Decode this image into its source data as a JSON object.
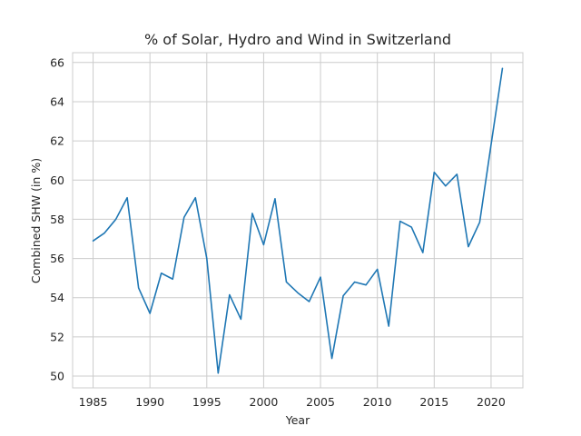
{
  "chart_data": {
    "type": "line",
    "title": "% of Solar, Hydro and Wind in Switzerland",
    "xlabel": "Year",
    "ylabel": "Combined SHW (in %)",
    "xlim": [
      1983.2,
      2022.8
    ],
    "ylim": [
      49.4,
      66.5
    ],
    "xticks": [
      1985,
      1990,
      1995,
      2000,
      2005,
      2010,
      2015,
      2020
    ],
    "yticks": [
      50,
      52,
      54,
      56,
      58,
      60,
      62,
      64,
      66
    ],
    "grid": true,
    "series": [
      {
        "color": "#1f77b4",
        "x": [
          1985,
          1986,
          1987,
          1988,
          1989,
          1990,
          1991,
          1992,
          1993,
          1994,
          1995,
          1996,
          1997,
          1998,
          1999,
          2000,
          2001,
          2002,
          2003,
          2004,
          2005,
          2006,
          2007,
          2008,
          2009,
          2010,
          2011,
          2012,
          2013,
          2014,
          2015,
          2016,
          2017,
          2018,
          2019,
          2020,
          2021
        ],
        "y": [
          56.9,
          57.3,
          58.0,
          59.1,
          54.5,
          53.2,
          55.25,
          54.95,
          58.1,
          59.1,
          56.0,
          50.15,
          54.15,
          52.9,
          58.3,
          56.7,
          59.05,
          54.8,
          54.25,
          53.8,
          55.05,
          50.9,
          54.1,
          54.8,
          54.65,
          55.45,
          52.55,
          57.9,
          57.6,
          56.3,
          60.4,
          59.7,
          60.3,
          56.6,
          57.85,
          61.8,
          65.7
        ]
      }
    ]
  }
}
